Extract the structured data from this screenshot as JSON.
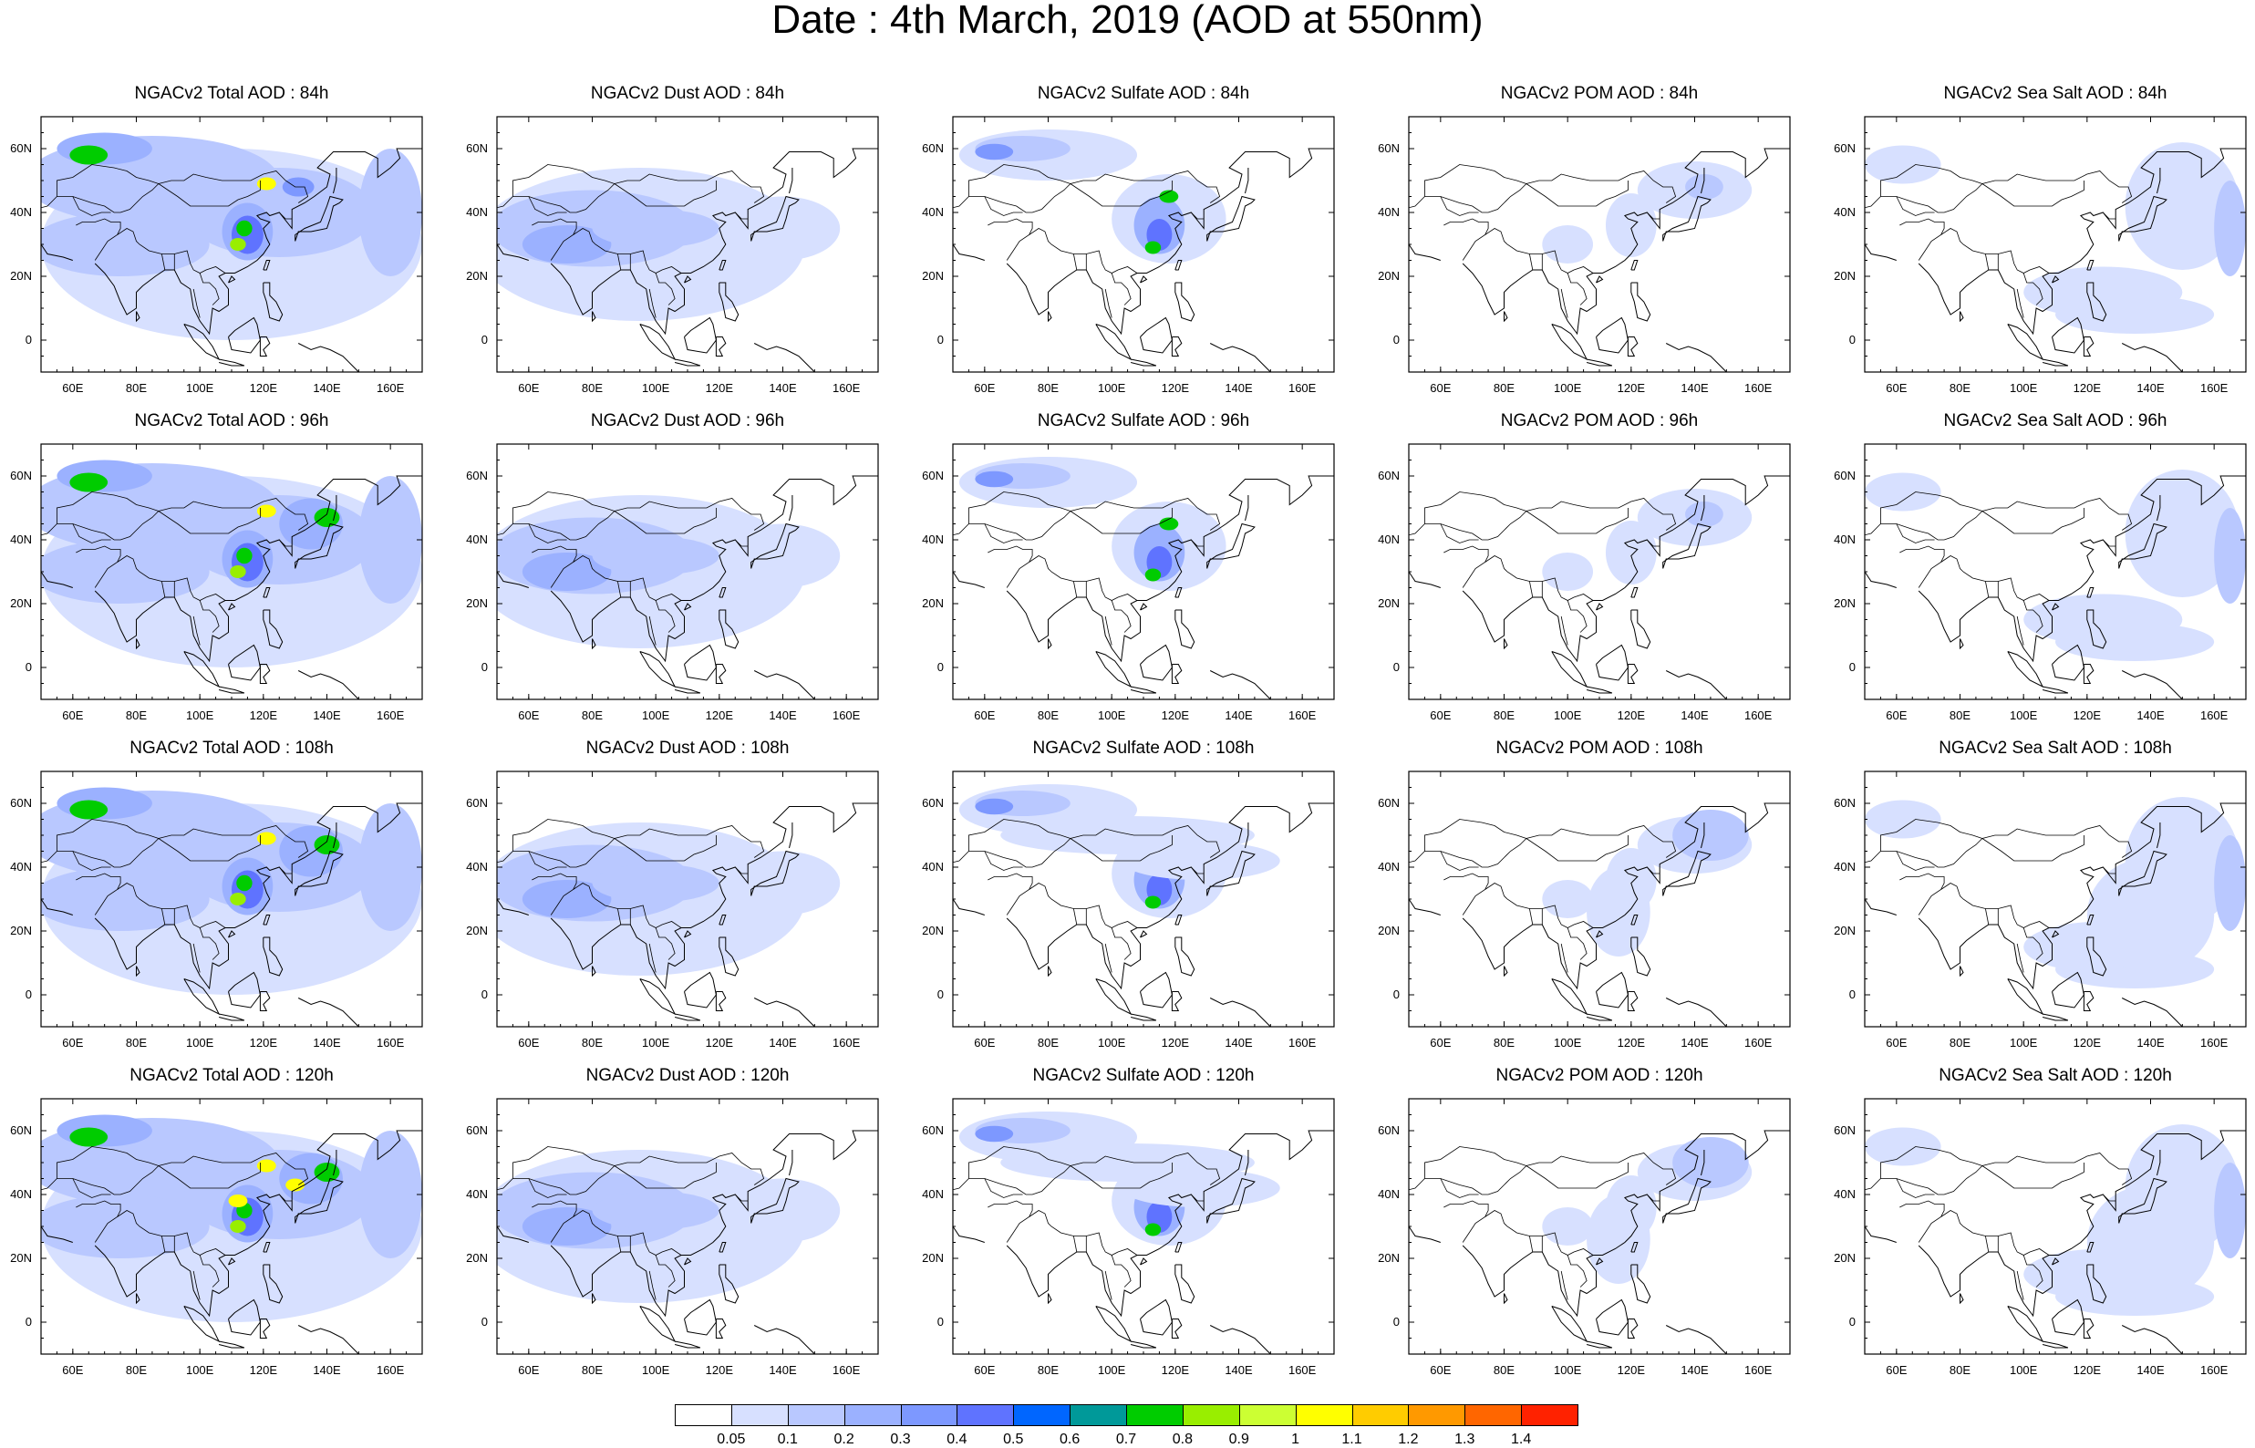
{
  "title": "Date : 4th March, 2019 (AOD at 550nm)",
  "map": {
    "lon_range": [
      50,
      170
    ],
    "lat_range": [
      -10,
      70
    ],
    "xticks": [
      "60E",
      "80E",
      "100E",
      "120E",
      "140E",
      "160E"
    ],
    "yticks": [
      "60N",
      "40N",
      "20N",
      "0"
    ]
  },
  "panels": [
    {
      "title": "NGACv2 Total AOD : 84h",
      "species": "total",
      "lead": "84h"
    },
    {
      "title": "NGACv2 Dust AOD : 84h",
      "species": "dust",
      "lead": "84h"
    },
    {
      "title": "NGACv2 Sulfate AOD : 84h",
      "species": "sulfate",
      "lead": "84h"
    },
    {
      "title": "NGACv2 POM AOD : 84h",
      "species": "pom",
      "lead": "84h"
    },
    {
      "title": "NGACv2 Sea Salt AOD : 84h",
      "species": "seasalt",
      "lead": "84h"
    },
    {
      "title": "NGACv2 Total AOD : 96h",
      "species": "total",
      "lead": "96h"
    },
    {
      "title": "NGACv2 Dust AOD : 96h",
      "species": "dust",
      "lead": "96h"
    },
    {
      "title": "NGACv2 Sulfate AOD : 96h",
      "species": "sulfate",
      "lead": "96h"
    },
    {
      "title": "NGACv2 POM AOD : 96h",
      "species": "pom",
      "lead": "96h"
    },
    {
      "title": "NGACv2 Sea Salt AOD : 96h",
      "species": "seasalt",
      "lead": "96h"
    },
    {
      "title": "NGACv2 Total AOD : 108h",
      "species": "total",
      "lead": "108h"
    },
    {
      "title": "NGACv2 Dust AOD : 108h",
      "species": "dust",
      "lead": "108h"
    },
    {
      "title": "NGACv2 Sulfate AOD : 108h",
      "species": "sulfate",
      "lead": "108h"
    },
    {
      "title": "NGACv2 POM AOD : 108h",
      "species": "pom",
      "lead": "108h"
    },
    {
      "title": "NGACv2 Sea Salt AOD : 108h",
      "species": "seasalt",
      "lead": "108h"
    },
    {
      "title": "NGACv2 Total AOD : 120h",
      "species": "total",
      "lead": "120h"
    },
    {
      "title": "NGACv2 Dust AOD : 120h",
      "species": "dust",
      "lead": "120h"
    },
    {
      "title": "NGACv2 Sulfate AOD : 120h",
      "species": "sulfate",
      "lead": "120h"
    },
    {
      "title": "NGACv2 POM AOD : 120h",
      "species": "pom",
      "lead": "120h"
    },
    {
      "title": "NGACv2 Sea Salt  AOD : 120h",
      "species": "seasalt",
      "lead": "120h"
    }
  ],
  "colorbar": {
    "labels": [
      "0.05",
      "0.1",
      "0.2",
      "0.3",
      "0.4",
      "0.5",
      "0.6",
      "0.7",
      "0.8",
      "0.9",
      "1",
      "1.1",
      "1.2",
      "1.3",
      "1.4"
    ],
    "colors": [
      "#ffffff",
      "#d7e0ff",
      "#b9c8ff",
      "#9bb1ff",
      "#7d98ff",
      "#5f73ff",
      "#0066ff",
      "#009999",
      "#00cc00",
      "#99ee00",
      "#ccff33",
      "#ffff00",
      "#ffcc00",
      "#ff9900",
      "#ff6600",
      "#ff2200"
    ]
  }
}
